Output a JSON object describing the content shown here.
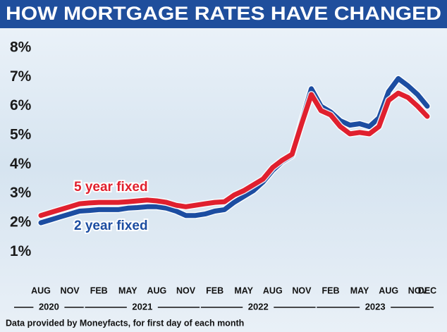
{
  "chart_data": {
    "type": "line",
    "title": "HOW MORTGAGE RATES HAVE CHANGED",
    "source": "Data provided by Moneyfacts, for first day of each month",
    "categories": [
      "AUG",
      null,
      null,
      "NOV",
      null,
      null,
      "FEB",
      null,
      null,
      "MAY",
      null,
      null,
      "AUG",
      null,
      null,
      "NOV",
      null,
      null,
      "FEB",
      null,
      null,
      "MAY",
      null,
      null,
      "AUG",
      null,
      null,
      "NOV",
      null,
      null,
      "FEB",
      null,
      null,
      "MAY",
      null,
      null,
      "AUG",
      null,
      null,
      "NOV",
      "DEC"
    ],
    "years": [
      "2020",
      "2021",
      "2022",
      "2023"
    ],
    "series": [
      {
        "name": "2 year fixed",
        "color": "#1c4da1",
        "values": [
          2.0,
          2.1,
          2.2,
          2.3,
          2.4,
          2.42,
          2.45,
          2.45,
          2.45,
          2.5,
          2.52,
          2.55,
          2.55,
          2.5,
          2.4,
          2.25,
          2.25,
          2.3,
          2.4,
          2.45,
          2.7,
          2.9,
          3.1,
          3.4,
          3.8,
          4.1,
          4.3,
          5.5,
          6.6,
          6.0,
          5.8,
          5.5,
          5.35,
          5.4,
          5.3,
          5.6,
          6.5,
          6.95,
          6.7,
          6.4,
          6.0
        ]
      },
      {
        "name": "5 year fixed",
        "color": "#e0202e",
        "values": [
          2.25,
          2.35,
          2.45,
          2.55,
          2.65,
          2.68,
          2.7,
          2.7,
          2.7,
          2.72,
          2.75,
          2.78,
          2.75,
          2.7,
          2.6,
          2.55,
          2.6,
          2.65,
          2.7,
          2.72,
          2.95,
          3.1,
          3.3,
          3.5,
          3.9,
          4.15,
          4.35,
          5.4,
          6.4,
          5.85,
          5.7,
          5.3,
          5.05,
          5.1,
          5.05,
          5.3,
          6.2,
          6.45,
          6.3,
          6.0,
          5.65
        ]
      }
    ],
    "ylim": [
      0.5,
      8
    ],
    "yticks": [
      {
        "value": 1,
        "label": "1%"
      },
      {
        "value": 2,
        "label": "2%"
      },
      {
        "value": 3,
        "label": "3%"
      },
      {
        "value": 4,
        "label": "4%"
      },
      {
        "value": 5,
        "label": "5%"
      },
      {
        "value": 6,
        "label": "6%"
      },
      {
        "value": 7,
        "label": "7%"
      },
      {
        "value": 8,
        "label": "8%"
      }
    ],
    "grid": false
  }
}
